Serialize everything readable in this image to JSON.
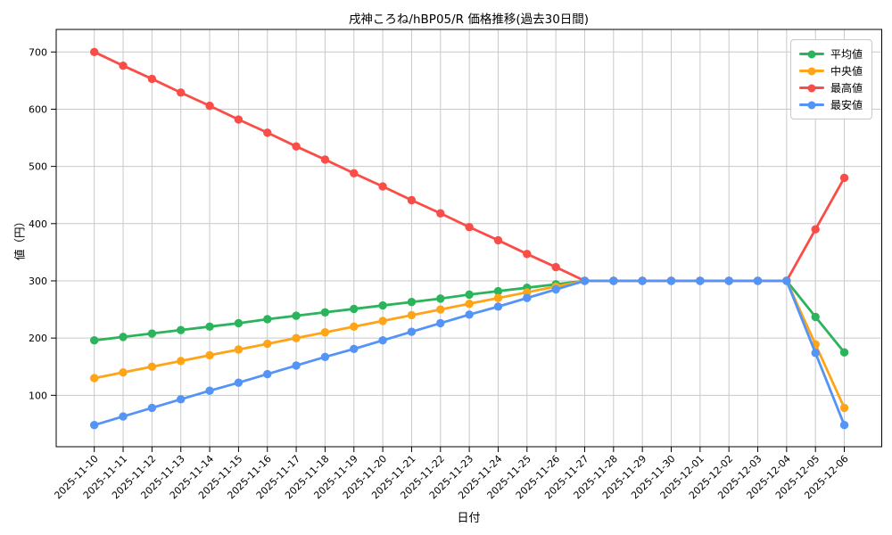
{
  "chart_data": {
    "type": "line",
    "title": "戌神ころね/hBP05/R 価格推移(過去30日間)",
    "xlabel": "日付",
    "ylabel": "値（円）",
    "grid": true,
    "legend_position": "top-right",
    "ylim": [
      10,
      742
    ],
    "yticks": [
      100,
      200,
      300,
      400,
      500,
      600,
      700
    ],
    "categories": [
      "2025-11-10",
      "2025-11-11",
      "2025-11-12",
      "2025-11-13",
      "2025-11-14",
      "2025-11-15",
      "2025-11-16",
      "2025-11-17",
      "2025-11-18",
      "2025-11-19",
      "2025-11-20",
      "2025-11-21",
      "2025-11-22",
      "2025-11-23",
      "2025-11-24",
      "2025-11-25",
      "2025-11-26",
      "2025-11-27",
      "2025-11-28",
      "2025-11-29",
      "2025-11-30",
      "2025-12-01",
      "2025-12-02",
      "2025-12-03",
      "2025-12-04",
      "2025-12-05",
      "2025-12-06"
    ],
    "series": [
      {
        "key": "average",
        "name": "平均値",
        "color": "#2cb45c",
        "values": [
          196,
          202,
          208,
          214,
          220,
          226,
          233,
          239,
          245,
          251,
          257,
          263,
          269,
          276,
          282,
          288,
          294,
          300,
          300,
          300,
          300,
          300,
          300,
          300,
          300,
          237,
          175
        ]
      },
      {
        "key": "median",
        "name": "中央値",
        "color": "#ffa416",
        "values": [
          130,
          140,
          150,
          160,
          170,
          180,
          190,
          200,
          210,
          220,
          230,
          240,
          250,
          260,
          270,
          280,
          290,
          300,
          300,
          300,
          300,
          300,
          300,
          300,
          300,
          189,
          78
        ]
      },
      {
        "key": "max",
        "name": "最高値",
        "color": "#fa4d48",
        "values": [
          700,
          676,
          653,
          629,
          606,
          582,
          559,
          535,
          512,
          488,
          465,
          441,
          418,
          394,
          371,
          347,
          324,
          300,
          300,
          300,
          300,
          300,
          300,
          300,
          300,
          390,
          480
        ]
      },
      {
        "key": "min",
        "name": "最安値",
        "color": "#5394f6",
        "values": [
          48,
          63,
          78,
          93,
          108,
          122,
          137,
          152,
          167,
          181,
          196,
          211,
          226,
          241,
          255,
          270,
          285,
          300,
          300,
          300,
          300,
          300,
          300,
          300,
          300,
          174,
          48
        ]
      }
    ],
    "style": {
      "grid_color": "#c9c9c9",
      "spine_color": "#000000",
      "background": "#ffffff"
    }
  }
}
